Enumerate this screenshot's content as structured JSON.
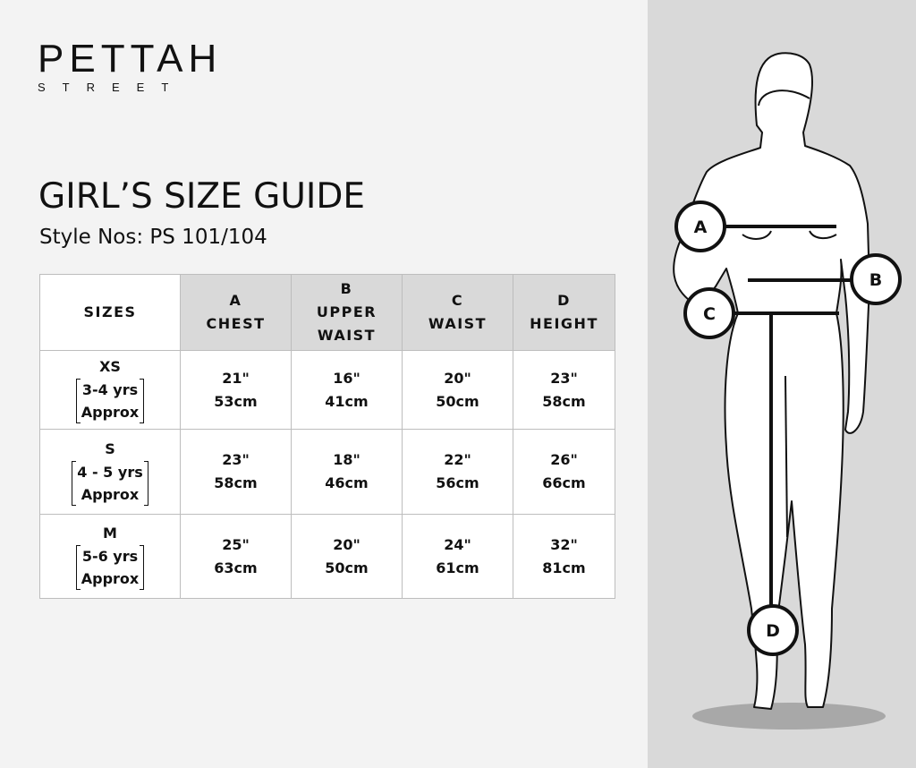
{
  "logo": {
    "main": "PETTAH",
    "sub": "STREET"
  },
  "title": "GIRL’S SIZE GUIDE",
  "subtitle": "Style Nos: PS 101/104",
  "table": {
    "headers": [
      {
        "letter": "",
        "name": "SIZES"
      },
      {
        "letter": "A",
        "name": "CHEST"
      },
      {
        "letter": "B",
        "name": "UPPER WAIST"
      },
      {
        "letter": "C",
        "name": "WAIST"
      },
      {
        "letter": "D",
        "name": "HEIGHT"
      }
    ],
    "rows": [
      {
        "size": "XS",
        "age": "3-4 yrs",
        "approx": "Approx",
        "values": [
          [
            "21\"",
            "53cm"
          ],
          [
            "16\"",
            "41cm"
          ],
          [
            "20\"",
            "50cm"
          ],
          [
            "23\"",
            "58cm"
          ]
        ]
      },
      {
        "size": "S",
        "age": "4 - 5 yrs",
        "approx": "Approx",
        "values": [
          [
            "23\"",
            "58cm"
          ],
          [
            "18\"",
            "46cm"
          ],
          [
            "22\"",
            "56cm"
          ],
          [
            "26\"",
            "66cm"
          ]
        ]
      },
      {
        "size": "M",
        "age": "5-6 yrs",
        "approx": "Approx",
        "values": [
          [
            "25\"",
            "63cm"
          ],
          [
            "20\"",
            "50cm"
          ],
          [
            "24\"",
            "61cm"
          ],
          [
            "32\"",
            "81cm"
          ]
        ]
      }
    ]
  },
  "figure": {
    "labels": {
      "a": "A",
      "b": "B",
      "c": "C",
      "d": "D"
    }
  },
  "colors": {
    "header_shade": "#d9d9d9",
    "panel": "#d9d9d9",
    "background": "#f3f3f3"
  }
}
